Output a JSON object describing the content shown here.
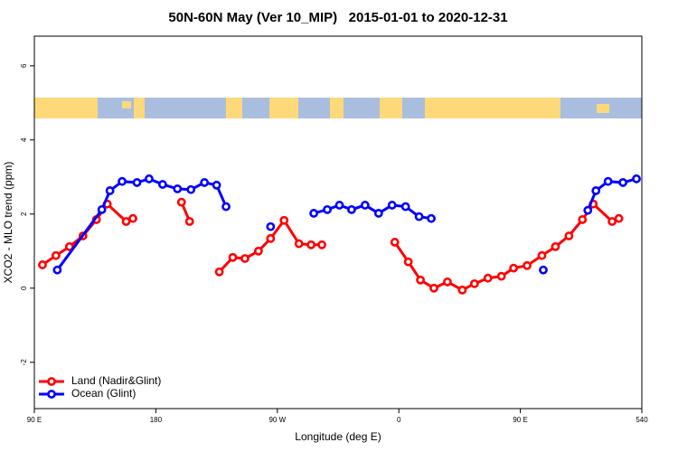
{
  "chart_data": {
    "type": "line",
    "title": "50N-60N May (Ver 10_MIP)   2015-01-01 to 2020-12-31",
    "xlabel": "Longitude (deg E)",
    "ylabel": "XCO2 - MLO trend (ppm)",
    "xlim": [
      90,
      540
    ],
    "ylim": [
      -3.25,
      6.8
    ],
    "xticks": [
      {
        "value": 90,
        "label": "90 E"
      },
      180,
      {
        "value": 270,
        "label": "90 W"
      },
      {
        "value": 360,
        "label": "0"
      },
      {
        "value": 450,
        "label": "90 E"
      },
      540
    ],
    "yticks": [
      -2,
      0,
      2,
      4,
      6
    ],
    "legend": "bottomleft",
    "series": [
      {
        "name": "Land (Nadir&Glint)",
        "color": "#ff0000",
        "x": [
          96,
          106,
          116,
          126,
          136,
          144,
          158,
          163,
          null,
          199,
          205,
          null,
          227,
          237,
          246,
          256,
          265,
          275,
          286,
          295,
          303,
          null,
          357,
          367,
          376,
          386,
          396,
          407,
          416,
          426,
          436,
          445,
          455,
          466,
          476,
          486,
          496,
          504,
          518,
          523
        ],
        "values": [
          0.63,
          0.88,
          1.12,
          1.41,
          1.85,
          2.27,
          1.8,
          1.88,
          null,
          2.32,
          1.8,
          null,
          0.44,
          0.83,
          0.8,
          1.0,
          1.34,
          1.83,
          1.2,
          1.17,
          1.17,
          null,
          1.24,
          0.71,
          0.22,
          0.0,
          0.17,
          -0.05,
          0.12,
          0.27,
          0.32,
          0.54,
          0.61,
          0.88,
          1.12,
          1.41,
          1.85,
          2.27,
          1.8,
          1.88
        ]
      },
      {
        "name": "Ocean (Glint)",
        "color": "#0000ff",
        "x": [
          107,
          140,
          146,
          155,
          166,
          175,
          185,
          196,
          206,
          216,
          225,
          232,
          null,
          265,
          null,
          297,
          307,
          316,
          325,
          335,
          345,
          355,
          365,
          375,
          384,
          null,
          467,
          null,
          500,
          506,
          515,
          526,
          536
        ],
        "values": [
          0.49,
          2.12,
          2.63,
          2.88,
          2.85,
          2.95,
          2.8,
          2.68,
          2.66,
          2.85,
          2.78,
          2.2,
          null,
          1.66,
          null,
          2.02,
          2.12,
          2.24,
          2.12,
          2.24,
          2.02,
          2.24,
          2.2,
          1.93,
          1.88,
          null,
          0.49,
          null,
          2.1,
          2.63,
          2.88,
          2.85,
          2.95
        ]
      }
    ]
  }
}
